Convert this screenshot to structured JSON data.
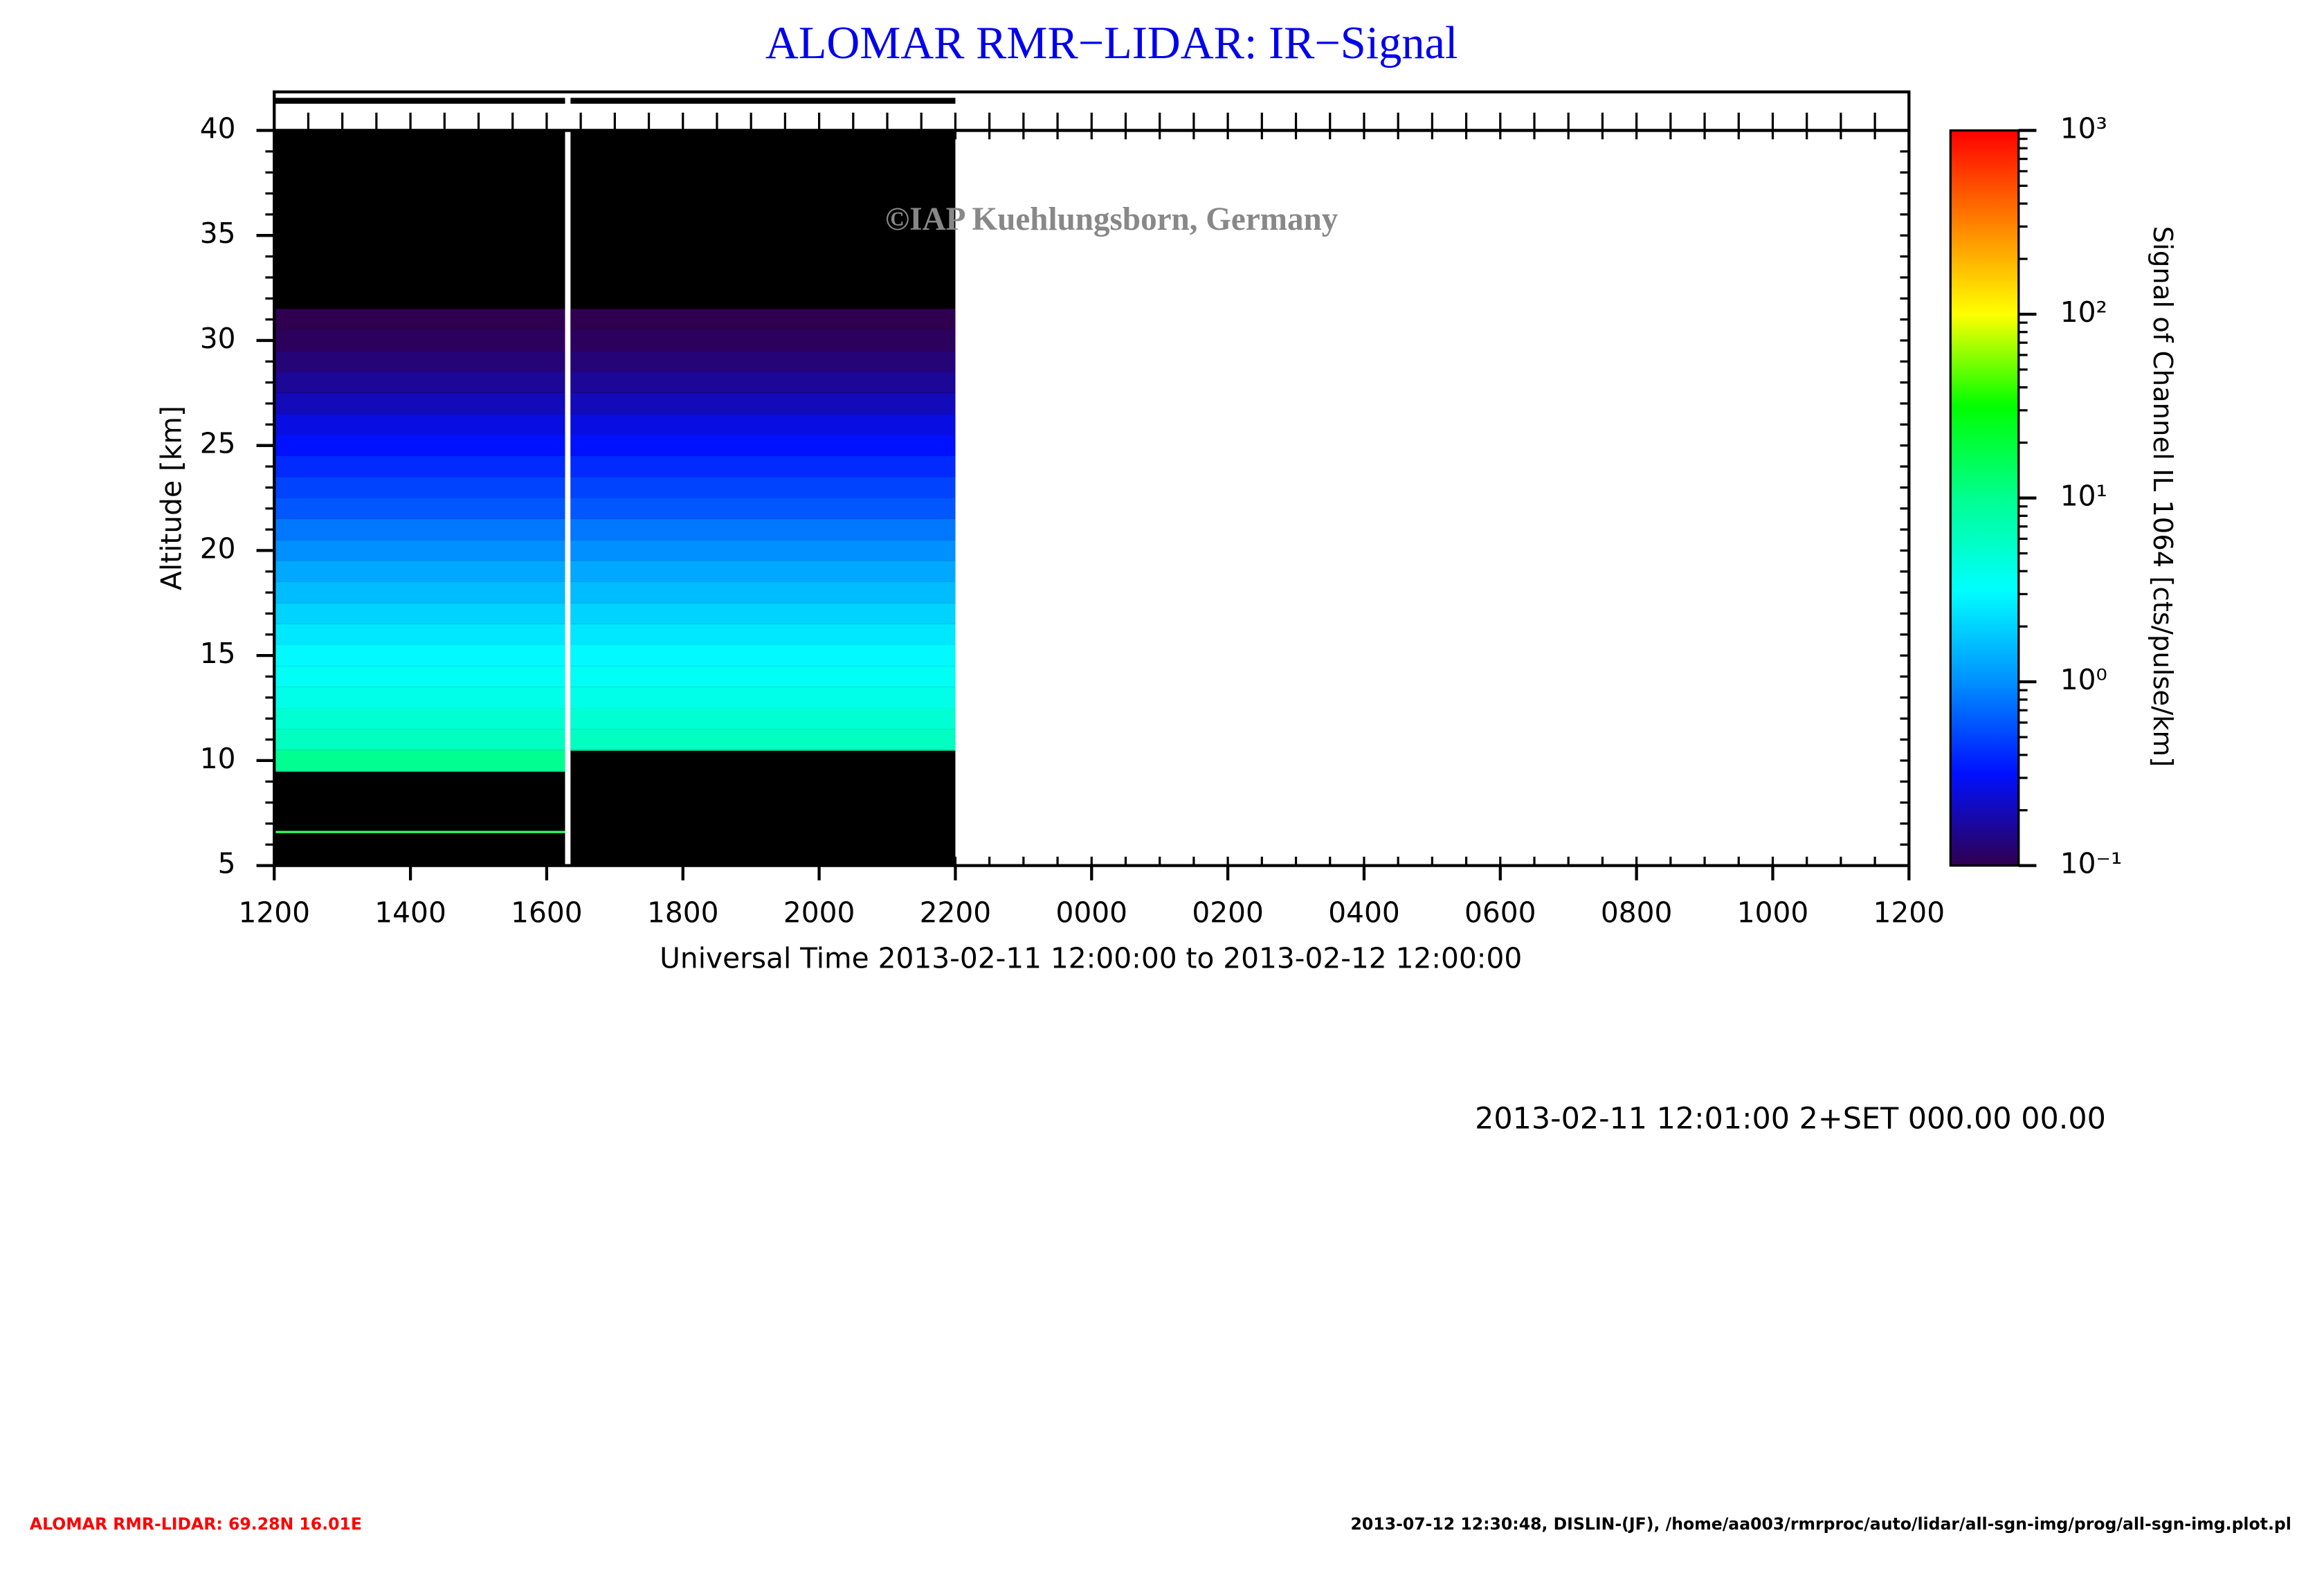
{
  "chart_data": {
    "type": "heatmap",
    "title": "ALOMAR RMR−LIDAR: IR−Signal",
    "watermark": "©IAP Kuehlungsborn, Germany",
    "y_label": "Altitude [km]",
    "x_label": "Universal Time 2013-02-11 12:00:00 to 2013-02-12 12:00:00",
    "colorbar_label": "Signal of Channel IL 1064 [cts/pulse/km]",
    "xlim": [
      0,
      24
    ],
    "xticks": [
      {
        "value": 0,
        "label": "1200"
      },
      {
        "value": 2,
        "label": "1400"
      },
      {
        "value": 4,
        "label": "1600"
      },
      {
        "value": 6,
        "label": "1800"
      },
      {
        "value": 8,
        "label": "2000"
      },
      {
        "value": 10,
        "label": "2200"
      },
      {
        "value": 12,
        "label": "0000"
      },
      {
        "value": 14,
        "label": "0200"
      },
      {
        "value": 16,
        "label": "0400"
      },
      {
        "value": 18,
        "label": "0600"
      },
      {
        "value": 20,
        "label": "0800"
      },
      {
        "value": 22,
        "label": "1000"
      },
      {
        "value": 24,
        "label": "1200"
      }
    ],
    "ylim": [
      5,
      40
    ],
    "yticks": [
      5,
      10,
      15,
      20,
      25,
      30,
      35,
      40
    ],
    "clim": [
      0.1,
      1000
    ],
    "log_colorscale": true,
    "cticks": [
      {
        "value": 0.1,
        "label": "10⁻¹"
      },
      {
        "value": 1,
        "label": "10⁰"
      },
      {
        "value": 10,
        "label": "10¹"
      },
      {
        "value": 100,
        "label": "10²"
      },
      {
        "value": 1000,
        "label": "10³"
      }
    ],
    "colormap": [
      "#300050",
      "#0010ff",
      "#0090ff",
      "#00ffff",
      "#00ff90",
      "#00ff00",
      "#ffff00",
      "#ff8000",
      "#ff0000"
    ],
    "altitude_edges": [
      9.5,
      10.5,
      11.5,
      12.5,
      13.5,
      14.5,
      15.5,
      16.5,
      17.5,
      18.5,
      19.5,
      20.5,
      21.5,
      22.5,
      23.5,
      24.5,
      25.5,
      26.5,
      27.5,
      28.5,
      29.5,
      30.5,
      31.5
    ],
    "signal": [
      10,
      6,
      5,
      4,
      3.5,
      3,
      2.5,
      2,
      1.6,
      1.3,
      1,
      0.8,
      0.6,
      0.5,
      0.4,
      0.32,
      0.26,
      0.2,
      0.16,
      0.13,
      0.11,
      0.1
    ],
    "periods": [
      {
        "start": 0,
        "end": 4.27,
        "cloud_base": 9.5,
        "line_altitude": 6.6
      },
      {
        "start": 4.35,
        "end": 10,
        "cloud_base": 10.5
      }
    ],
    "footer_center": "2013-02-11 12:01:00 2+SET 000.00 00.00",
    "footer_left": "ALOMAR RMR-LIDAR: 69.28N 16.01E",
    "footer_right": "2013-07-12 12:30:48, DISLIN-(JF), /home/aa003/rmrproc/auto/lidar/all-sgn-img/prog/all-sgn-img.plot.pl"
  }
}
